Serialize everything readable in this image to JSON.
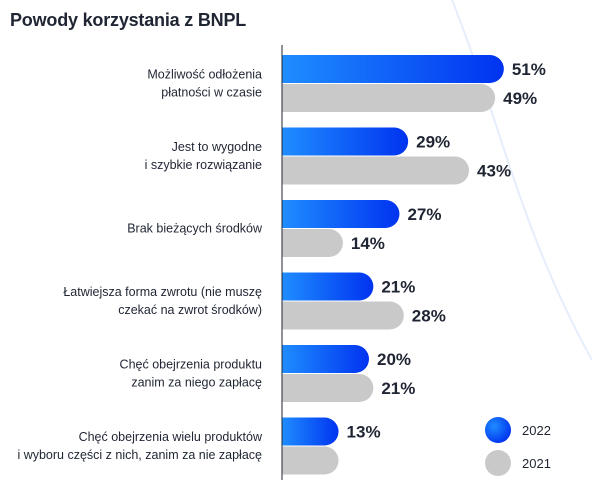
{
  "title": "Powody korzystania z BNPL",
  "colors": {
    "series_2022_start": "#1f8dff",
    "series_2022_end": "#0033f0",
    "series_2021": "#c9c9c9",
    "axis": "#1f2533",
    "decor_arc": "#e6eefb"
  },
  "chart_data": {
    "type": "bar",
    "orientation": "horizontal",
    "title": "Powody korzystania z BNPL",
    "categories": [
      [
        "Możliwość odłożenia",
        "płatności w czasie"
      ],
      [
        "Jest to wygodne",
        "i szybkie rozwiązanie"
      ],
      [
        "Brak bieżących środków"
      ],
      [
        "Łatwiejsza forma zwrotu (nie muszę",
        "czekać na zwrot środków)"
      ],
      [
        "Chęć obejrzenia produktu",
        "zanim za niego zapłacę"
      ],
      [
        "Chęć obejrzenia wielu produktów",
        "i wyboru części z nich, zanim za nie zapłacę"
      ]
    ],
    "series": [
      {
        "name": "2022",
        "values": [
          51,
          29,
          27,
          21,
          20,
          13
        ],
        "labels": [
          "51%",
          "29%",
          "27%",
          "21%",
          "20%",
          "13%"
        ]
      },
      {
        "name": "2021",
        "values": [
          49,
          43,
          14,
          28,
          21,
          null
        ],
        "labels": [
          "49%",
          "43%",
          "14%",
          "28%",
          "21%",
          ""
        ]
      }
    ],
    "legend": {
      "placement": "bottom-right",
      "entries": [
        "2022",
        "2021"
      ]
    },
    "grid": false
  }
}
